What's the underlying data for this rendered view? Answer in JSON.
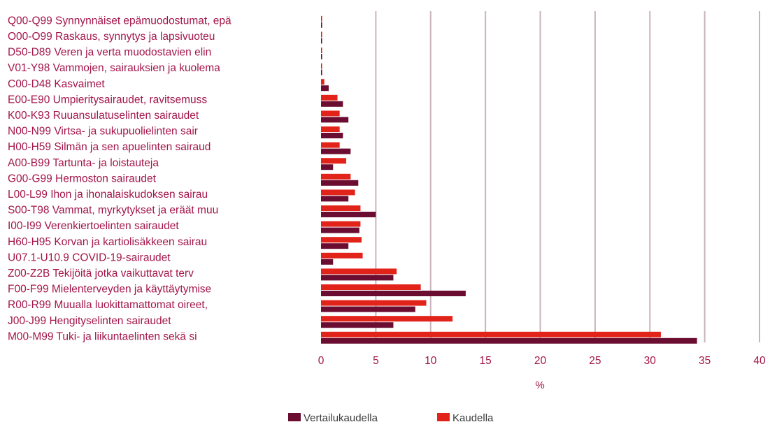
{
  "chart_data": {
    "type": "bar",
    "orientation": "horizontal",
    "xlabel": "%",
    "ylabel": "",
    "xlim": [
      0,
      40
    ],
    "xticks": [
      "0",
      "5",
      "10",
      "15",
      "20",
      "25",
      "30",
      "35",
      "40"
    ],
    "grid": "vertical",
    "legend_position": "bottom",
    "categories": [
      "Q00-Q99 Synnynnäiset epämuodostumat, epä",
      "O00-O99 Raskaus, synnytys ja lapsivuoteu",
      "D50-D89 Veren ja verta muodostavien elin",
      "V01-Y98 Vammojen, sairauksien ja kuolema",
      "C00-D48 Kasvaimet",
      "E00-E90 Umpieritysairaudet, ravitsemuss",
      "K00-K93 Ruuansulatuselinten sairaudet",
      "N00-N99 Virtsa- ja sukupuolielinten sair",
      "H00-H59 Silmän ja sen apuelinten sairaud",
      "A00-B99 Tartunta- ja loistauteja",
      "G00-G99 Hermoston sairaudet",
      "L00-L99 Ihon ja ihonalaiskudoksen sairau",
      "S00-T98 Vammat, myrkytykset ja eräät muu",
      "I00-I99 Verenkiertoelinten sairaudet",
      "H60-H95 Korvan ja kartiolisäkkeen sairau",
      "U07.1-U10.9 COVID-19-sairaudet",
      "Z00-Z2B Tekijöitä jotka vaikuttavat terv",
      "F00-F99 Mielenterveyden ja käyttäytymise",
      "R00-R99 Muualla luokittamattomat oireet,",
      "J00-J99 Hengityselinten sairaudet",
      "M00-M99 Tuki- ja liikuntaelinten sekä si"
    ],
    "series": [
      {
        "name": "Vertailukaudella",
        "color": "#6b0d30",
        "values": [
          0.1,
          0.1,
          0.1,
          0.1,
          0.7,
          2.0,
          2.5,
          2.0,
          2.7,
          1.1,
          3.4,
          2.5,
          5.0,
          3.5,
          2.5,
          1.1,
          6.6,
          13.2,
          8.6,
          6.6,
          34.3
        ]
      },
      {
        "name": "Kaudella",
        "color": "#e2231a",
        "values": [
          0.1,
          0.1,
          0.1,
          0.1,
          0.3,
          1.5,
          1.7,
          1.7,
          1.7,
          2.3,
          2.7,
          3.1,
          3.6,
          3.6,
          3.7,
          3.8,
          6.9,
          9.1,
          9.6,
          12.0,
          31.0
        ]
      }
    ]
  }
}
